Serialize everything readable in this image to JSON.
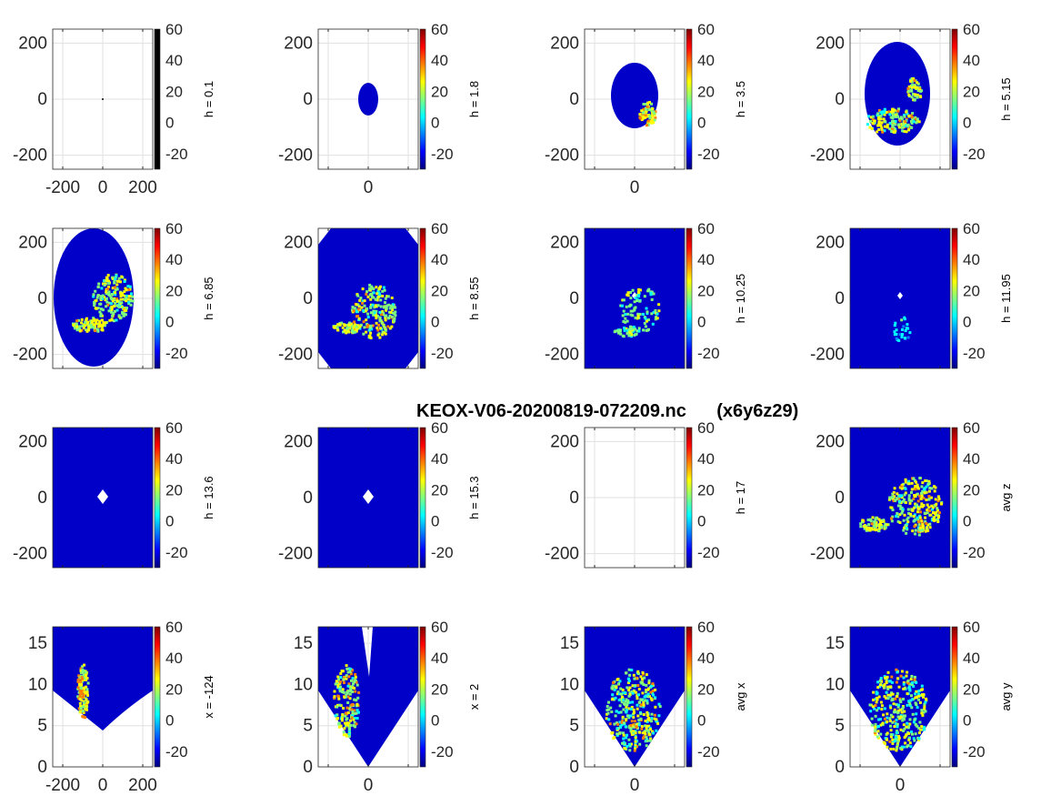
{
  "figure": {
    "title": "KEOX-V06-20200819-072209.nc      (x6y6z29)"
  },
  "colormap": {
    "name": "jet",
    "stops": [
      "#00007f",
      "#0000ff",
      "#007fff",
      "#00ffff",
      "#7fff7f",
      "#ffff00",
      "#ff7f00",
      "#ff0000",
      "#7f0000"
    ]
  },
  "colorbar": {
    "range": [
      -30,
      60
    ],
    "ticks": [
      60,
      40,
      20,
      0,
      -20
    ]
  },
  "chart_data": [
    {
      "type": "heatmap",
      "label": "h = 0.1",
      "x_ticks": [
        -200,
        0,
        200
      ],
      "y_ticks": [
        200,
        0,
        -200
      ],
      "xlim": [
        -250,
        250
      ],
      "ylim": [
        -250,
        250
      ],
      "colorbar": "gray"
    },
    {
      "type": "heatmap",
      "label": "h = 1.8",
      "x_ticks": [
        0
      ],
      "y_ticks": [
        200,
        0,
        -200
      ],
      "xlim": [
        -250,
        250
      ],
      "ylim": [
        -250,
        250
      ],
      "colorbar": "jet"
    },
    {
      "type": "heatmap",
      "label": "h = 3.5",
      "x_ticks": [
        0
      ],
      "y_ticks": [
        200,
        0,
        -200
      ],
      "xlim": [
        -250,
        250
      ],
      "ylim": [
        -250,
        250
      ],
      "colorbar": "jet"
    },
    {
      "type": "heatmap",
      "label": "h = 5.15",
      "x_ticks": [],
      "y_ticks": [
        200,
        0,
        -200
      ],
      "xlim": [
        -250,
        250
      ],
      "ylim": [
        -250,
        250
      ],
      "colorbar": "jet"
    },
    {
      "type": "heatmap",
      "label": "h = 6.85",
      "x_ticks": [],
      "y_ticks": [
        200,
        0,
        -200
      ],
      "xlim": [
        -250,
        250
      ],
      "ylim": [
        -250,
        250
      ],
      "colorbar": "jet"
    },
    {
      "type": "heatmap",
      "label": "h = 8.55",
      "x_ticks": [],
      "y_ticks": [
        200,
        0,
        -200
      ],
      "xlim": [
        -250,
        250
      ],
      "ylim": [
        -250,
        250
      ],
      "colorbar": "jet"
    },
    {
      "type": "heatmap",
      "label": "h = 10.25",
      "x_ticks": [],
      "y_ticks": [
        200,
        0,
        -200
      ],
      "xlim": [
        -250,
        250
      ],
      "ylim": [
        -250,
        250
      ],
      "colorbar": "jet"
    },
    {
      "type": "heatmap",
      "label": "h = 11.95",
      "x_ticks": [],
      "y_ticks": [
        200,
        0,
        -200
      ],
      "xlim": [
        -250,
        250
      ],
      "ylim": [
        -250,
        250
      ],
      "colorbar": "jet"
    },
    {
      "type": "heatmap",
      "label": "h = 13.6",
      "x_ticks": [],
      "y_ticks": [
        200,
        0,
        -200
      ],
      "xlim": [
        -250,
        250
      ],
      "ylim": [
        -250,
        250
      ],
      "colorbar": "jet"
    },
    {
      "type": "heatmap",
      "label": "h = 15.3",
      "x_ticks": [],
      "y_ticks": [
        200,
        0,
        -200
      ],
      "xlim": [
        -250,
        250
      ],
      "ylim": [
        -250,
        250
      ],
      "colorbar": "jet"
    },
    {
      "type": "heatmap",
      "label": "h = 17",
      "x_ticks": [],
      "y_ticks": [
        200,
        0,
        -200
      ],
      "xlim": [
        -250,
        250
      ],
      "ylim": [
        -250,
        250
      ],
      "colorbar": "jet"
    },
    {
      "type": "heatmap",
      "label": "avg z",
      "x_ticks": [],
      "y_ticks": [
        200,
        0,
        -200
      ],
      "xlim": [
        -250,
        250
      ],
      "ylim": [
        -250,
        250
      ],
      "colorbar": "jet"
    },
    {
      "type": "heatmap",
      "label": "x = -124",
      "x_ticks": [
        -200,
        0,
        200
      ],
      "y_ticks": [
        15,
        10,
        5,
        0
      ],
      "xlim": [
        -250,
        250
      ],
      "ylim": [
        0,
        17
      ],
      "colorbar": "jet"
    },
    {
      "type": "heatmap",
      "label": "x = 2",
      "x_ticks": [
        0
      ],
      "y_ticks": [
        15,
        10,
        5,
        0
      ],
      "xlim": [
        -250,
        250
      ],
      "ylim": [
        0,
        17
      ],
      "colorbar": "jet"
    },
    {
      "type": "heatmap",
      "label": "avg x",
      "x_ticks": [
        0
      ],
      "y_ticks": [
        15,
        10,
        5,
        0
      ],
      "xlim": [
        -250,
        250
      ],
      "ylim": [
        0,
        17
      ],
      "colorbar": "jet"
    },
    {
      "type": "heatmap",
      "label": "avg y",
      "x_ticks": [
        0
      ],
      "y_ticks": [
        15,
        10,
        5,
        0
      ],
      "xlim": [
        -250,
        250
      ],
      "ylim": [
        0,
        17
      ],
      "colorbar": "jet"
    }
  ]
}
